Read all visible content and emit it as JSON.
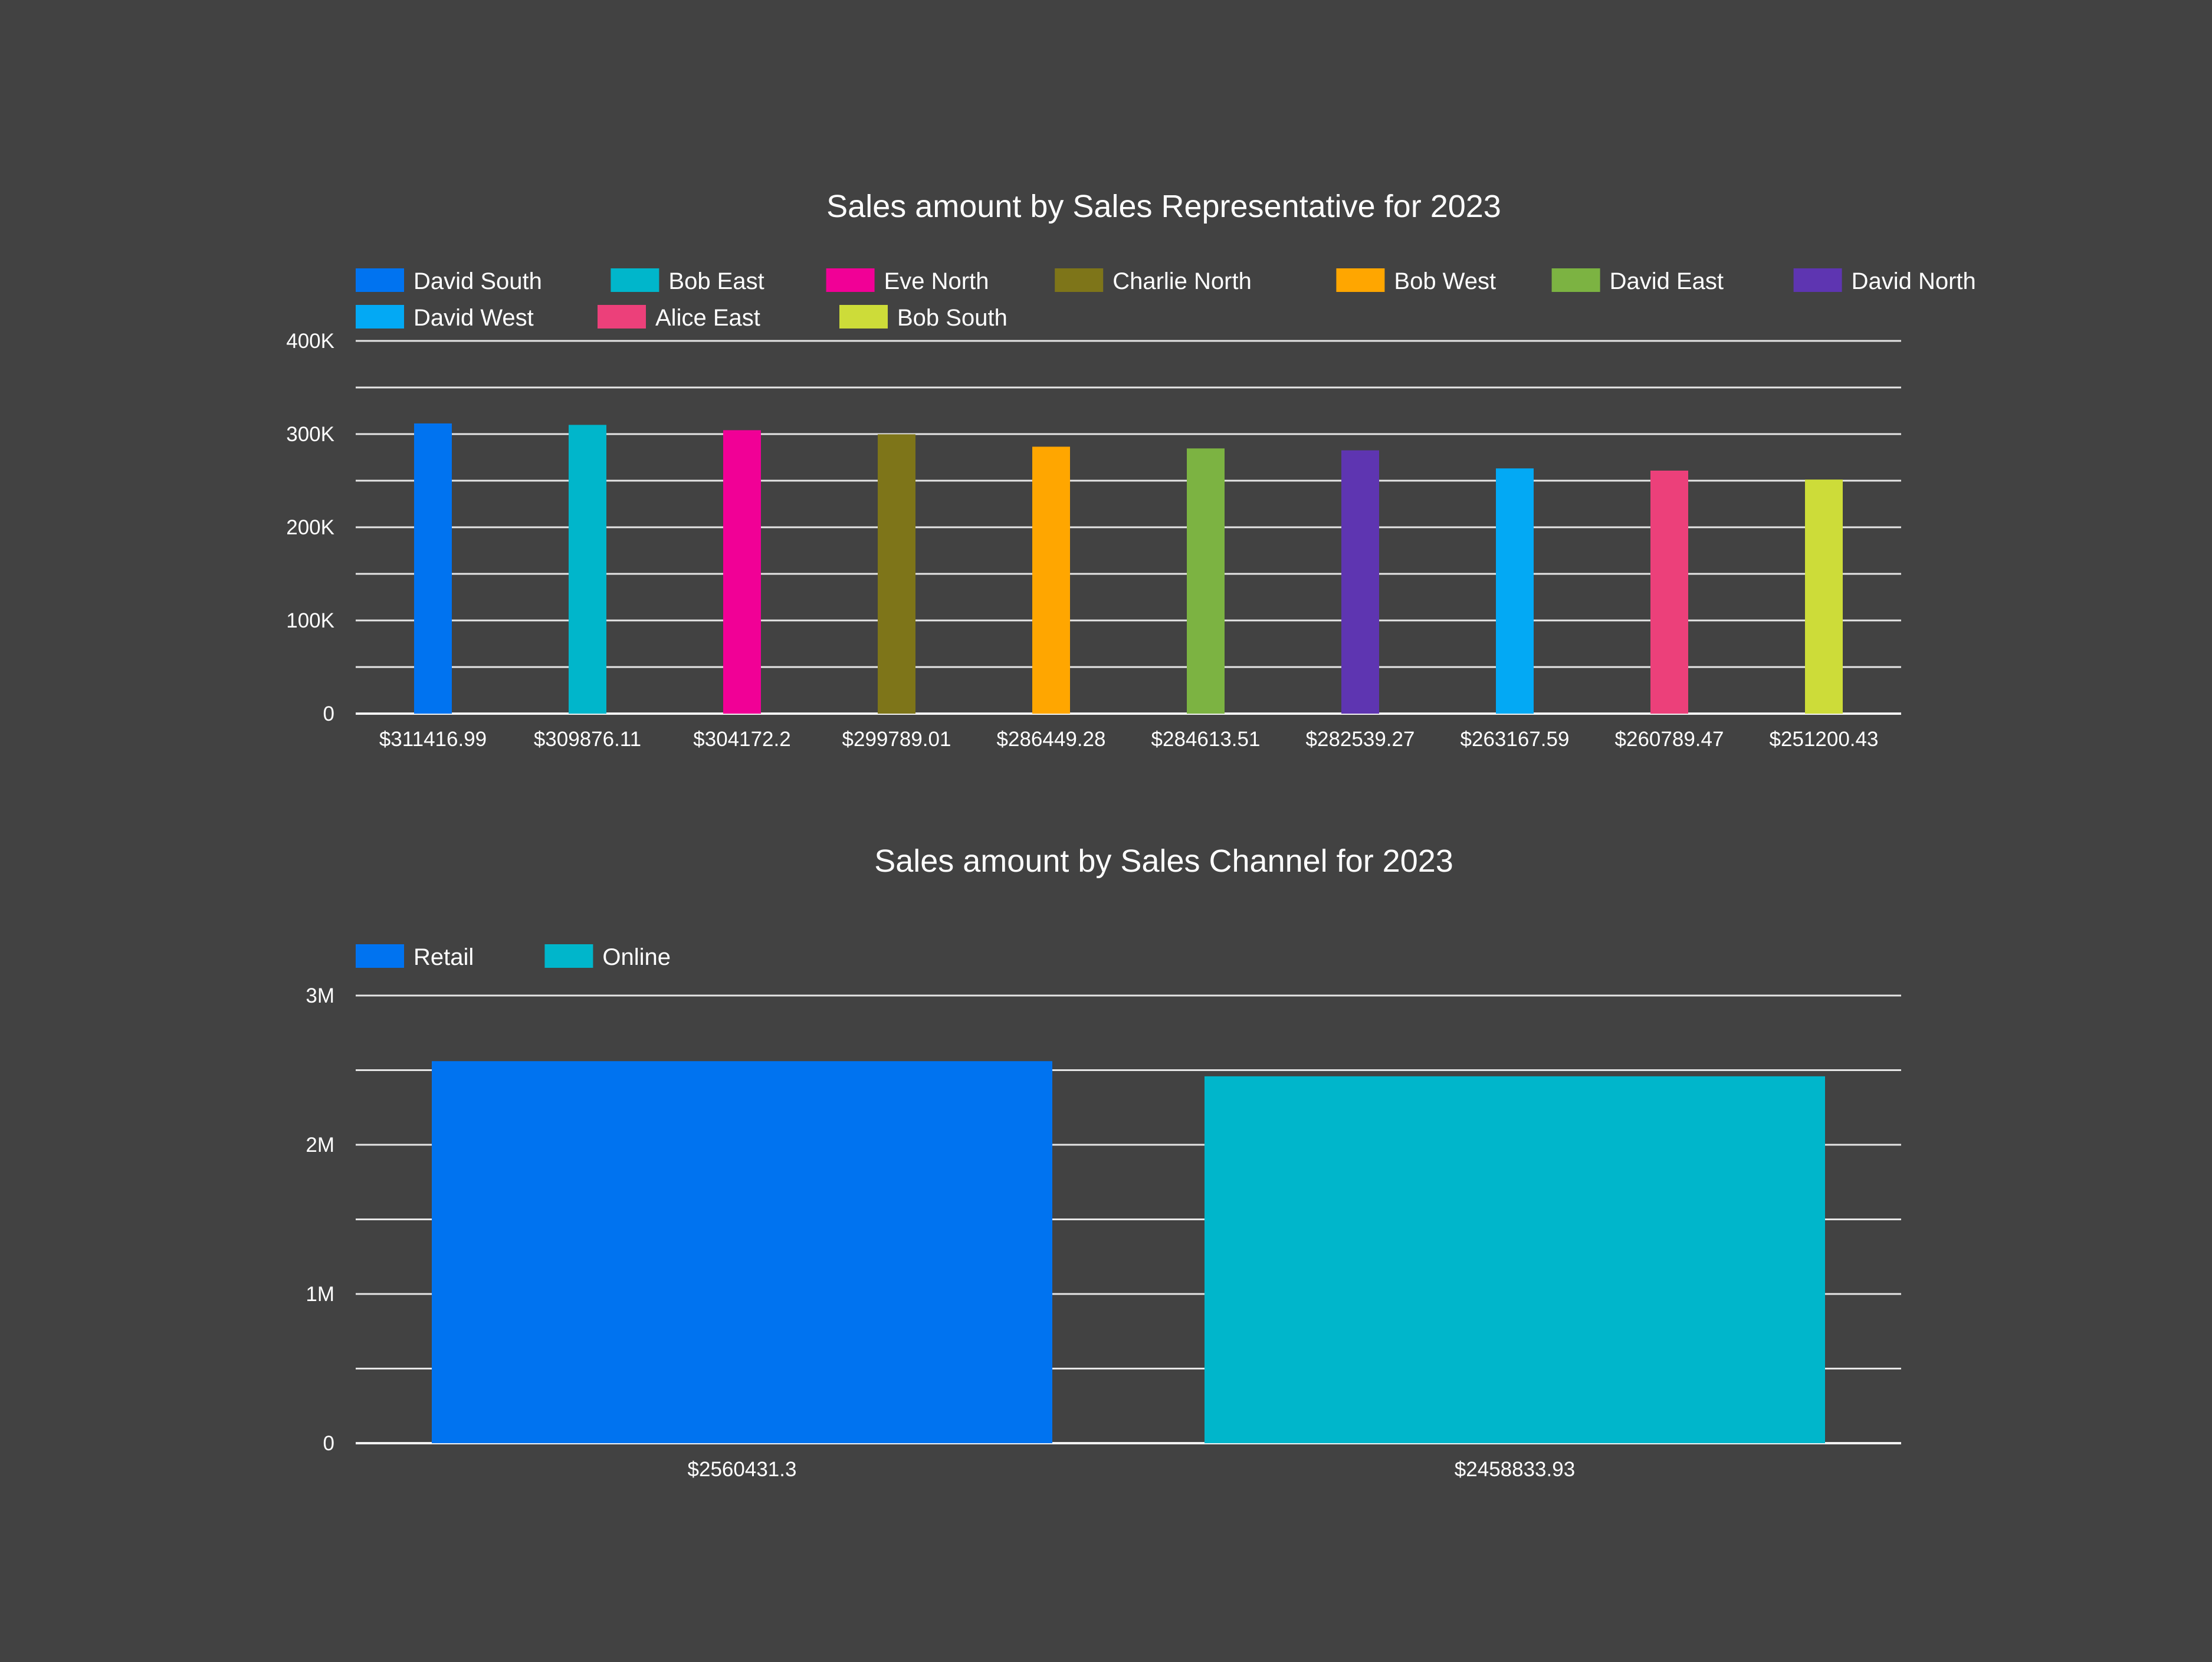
{
  "charts": [
    {
      "id": "rep",
      "title": "Sales amount by Sales Representative for 2023",
      "chart_data": {
        "type": "bar",
        "title": "Sales amount by Sales Representative for 2023",
        "xlabel": "",
        "ylabel": "",
        "ylim": [
          0,
          400000
        ],
        "y_ticks": [
          "0",
          "100K",
          "200K",
          "300K",
          "400K"
        ],
        "grid": true,
        "legend_position": "top-left",
        "categories": [
          "$311416.99",
          "$309876.11",
          "$304172.2",
          "$299789.01",
          "$286449.28",
          "$284613.51",
          "$282539.27",
          "$263167.59",
          "$260789.47",
          "$251200.43"
        ],
        "series": [
          {
            "name": "David South",
            "color": "#0073F0",
            "values": [
              311416.99,
              null,
              null,
              null,
              null,
              null,
              null,
              null,
              null,
              null
            ]
          },
          {
            "name": "Bob East",
            "color": "#00B6CB",
            "values": [
              null,
              309876.11,
              null,
              null,
              null,
              null,
              null,
              null,
              null,
              null
            ]
          },
          {
            "name": "Eve North",
            "color": "#F10096",
            "values": [
              null,
              null,
              304172.2,
              null,
              null,
              null,
              null,
              null,
              null,
              null
            ]
          },
          {
            "name": "Charlie North",
            "color": "#7E7519",
            "values": [
              null,
              null,
              null,
              299789.01,
              null,
              null,
              null,
              null,
              null,
              null
            ]
          },
          {
            "name": "Bob West",
            "color": "#FFA600",
            "values": [
              null,
              null,
              null,
              null,
              286449.28,
              null,
              null,
              null,
              null,
              null
            ]
          },
          {
            "name": "David East",
            "color": "#7CB342",
            "values": [
              null,
              null,
              null,
              null,
              null,
              284613.51,
              null,
              null,
              null,
              null
            ]
          },
          {
            "name": "David North",
            "color": "#5E35B1",
            "values": [
              null,
              null,
              null,
              null,
              null,
              null,
              282539.27,
              null,
              null,
              null
            ]
          },
          {
            "name": "David West",
            "color": "#03A9F4",
            "values": [
              null,
              null,
              null,
              null,
              null,
              null,
              null,
              263167.59,
              null,
              null
            ]
          },
          {
            "name": "Alice East",
            "color": "#EC407A",
            "values": [
              null,
              null,
              null,
              null,
              null,
              null,
              null,
              null,
              260789.47,
              null
            ]
          },
          {
            "name": "Bob South",
            "color": "#CDDC39",
            "values": [
              null,
              null,
              null,
              null,
              null,
              null,
              null,
              null,
              null,
              251200.43
            ]
          }
        ]
      }
    },
    {
      "id": "channel",
      "title": "Sales amount by Sales Channel for 2023",
      "chart_data": {
        "type": "bar",
        "title": "Sales amount by Sales Channel for 2023",
        "xlabel": "",
        "ylabel": "",
        "ylim": [
          0,
          3000000
        ],
        "y_ticks": [
          "0",
          "1M",
          "2M",
          "3M"
        ],
        "grid": true,
        "legend_position": "top-left",
        "categories": [
          "$2560431.3",
          "$2458833.93"
        ],
        "series": [
          {
            "name": "Retail",
            "color": "#0073F0",
            "values": [
              2560431.3,
              null
            ]
          },
          {
            "name": "Online",
            "color": "#00B6CB",
            "values": [
              null,
              2458833.93
            ]
          }
        ]
      }
    }
  ]
}
